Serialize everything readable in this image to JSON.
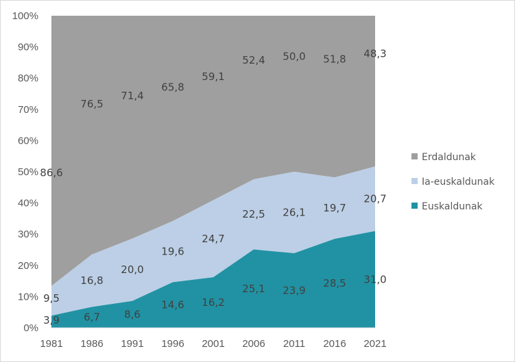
{
  "chart_data": {
    "type": "area",
    "stacked": true,
    "percent": true,
    "title": "",
    "xlabel": "",
    "ylabel": "",
    "ylim": [
      0,
      100
    ],
    "categories": [
      "1981",
      "1986",
      "1991",
      "1996",
      "2001",
      "2006",
      "2011",
      "2016",
      "2021"
    ],
    "y_ticks": [
      "0%",
      "10%",
      "20%",
      "30%",
      "40%",
      "50%",
      "60%",
      "70%",
      "80%",
      "90%",
      "100%"
    ],
    "legend_position": "right",
    "series": [
      {
        "name": "Euskaldunak",
        "color": "#2192a3",
        "values": [
          3.9,
          6.7,
          8.6,
          14.6,
          16.2,
          25.1,
          23.9,
          28.5,
          31.0
        ],
        "labels": [
          "3,9",
          "6,7",
          "8,6",
          "14,6",
          "16,2",
          "25,1",
          "23,9",
          "28,5",
          "31,0"
        ]
      },
      {
        "name": "Ia-euskaldunak",
        "color": "#bccfe6",
        "values": [
          9.5,
          16.8,
          20.0,
          19.6,
          24.7,
          22.5,
          26.1,
          19.7,
          20.7
        ],
        "labels": [
          "9,5",
          "16,8",
          "20,0",
          "19,6",
          "24,7",
          "22,5",
          "26,1",
          "19,7",
          "20,7"
        ]
      },
      {
        "name": "Erdaldunak",
        "color": "#9f9f9f",
        "values": [
          86.6,
          76.5,
          71.4,
          65.8,
          59.1,
          52.4,
          50.0,
          51.8,
          48.3
        ],
        "labels": [
          "86,6",
          "76,5",
          "71,4",
          "65,8",
          "59,1",
          "52,4",
          "50,0",
          "51,8",
          "48,3"
        ]
      }
    ],
    "legend": [
      "Erdaldunak",
      "Ia-euskaldunak",
      "Euskaldunak"
    ]
  }
}
